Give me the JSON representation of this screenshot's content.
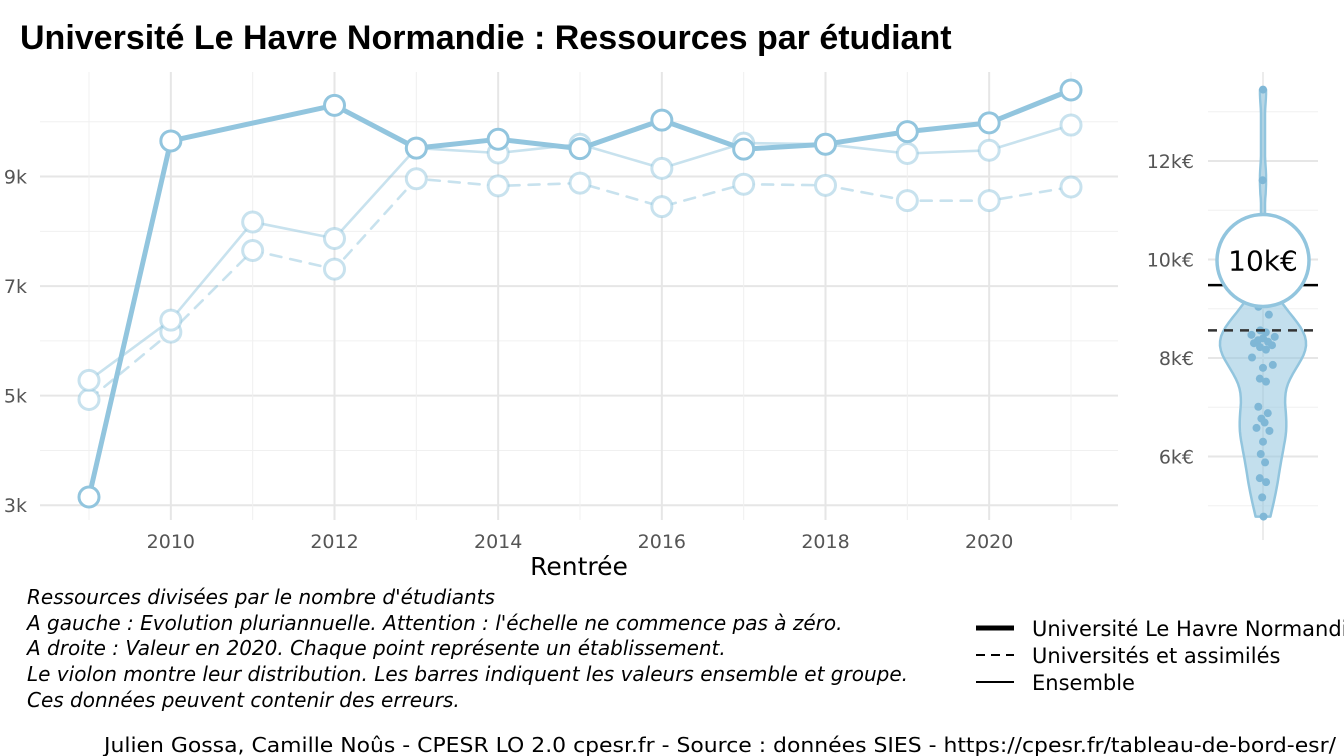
{
  "title": "Université Le Havre Normandie  :  Ressources par étudiant",
  "chart_data": [
    {
      "type": "line",
      "xlabel": "Rentrée",
      "x": [
        2009,
        2010,
        2011,
        2012,
        2013,
        2014,
        2015,
        2016,
        2017,
        2018,
        2019,
        2020,
        2021
      ],
      "xlim": [
        2008.1,
        2021.6
      ],
      "ylim": [
        2800,
        10800
      ],
      "x_ticks": [
        2010,
        2012,
        2014,
        2016,
        2018,
        2020
      ],
      "x_tick_labels": [
        "2010",
        "2012",
        "2014",
        "2016",
        "2018",
        "2020"
      ],
      "y_ticks": [
        3000,
        5000,
        7000,
        9000
      ],
      "y_tick_labels": [
        "3k",
        "5k",
        "7k",
        "9k"
      ],
      "scale": "linear",
      "grid": true,
      "series": [
        {
          "name": "Université Le Havre Normandie",
          "style": "thick-solid",
          "color": "#92c5de",
          "values": [
            3150,
            9650,
            null,
            10300,
            9520,
            9680,
            9510,
            10030,
            9500,
            9590,
            9820,
            9980,
            10580
          ]
        },
        {
          "name": "Ensemble",
          "style": "solid",
          "color": "#92c5de",
          "values": [
            5280,
            6380,
            8170,
            7870,
            9520,
            9430,
            9590,
            9150,
            9610,
            9590,
            9420,
            9480,
            9940
          ]
        },
        {
          "name": "Universités et assimilés",
          "style": "dashed",
          "color": "#92c5de",
          "values": [
            4930,
            6160,
            7650,
            7310,
            8960,
            8830,
            8880,
            8450,
            8860,
            8840,
            8560,
            8560,
            8810
          ]
        }
      ]
    },
    {
      "type": "violin",
      "year": 2020,
      "ylim": [
        4750,
        13850
      ],
      "y_ticks": [
        6000,
        8000,
        10000,
        12000
      ],
      "y_tick_labels": [
        "6k€",
        "8k€",
        "10k€",
        "12k€"
      ],
      "color": "#92c5de",
      "highlight_value": 9980,
      "highlight_label": "10k€",
      "ensemble_value": 9480,
      "group_value": 8560,
      "points": [
        13450,
        11610,
        9320,
        9040,
        8880,
        8560,
        8520,
        8470,
        8430,
        8400,
        8360,
        8330,
        8300,
        8260,
        8220,
        8170,
        8010,
        7860,
        7800,
        7580,
        7520,
        7010,
        6880,
        6770,
        6690,
        6580,
        6520,
        6300,
        6050,
        5880,
        5560,
        5480,
        5170,
        4780
      ]
    }
  ],
  "notes": [
    "Ressources divisées par le nombre d'étudiants",
    "A gauche : Evolution pluriannuelle. Attention : l'échelle ne commence pas à zéro.",
    "A droite : Valeur en 2020. Chaque point représente un établissement.",
    "Le violon montre leur distribution. Les barres indiquent les valeurs ensemble et groupe.",
    "Ces données peuvent contenir des erreurs."
  ],
  "legend": [
    {
      "label": "Université Le Havre Normandie",
      "style": "thick-solid"
    },
    {
      "label": "Universités et assimilés",
      "style": "dashed"
    },
    {
      "label": "Ensemble",
      "style": "solid"
    }
  ],
  "caption": "Julien Gossa, Camille Noûs - CPESR LO 2.0 cpesr.fr - Source : données SIES - https://cpesr.fr/tableau-de-bord-esr/"
}
